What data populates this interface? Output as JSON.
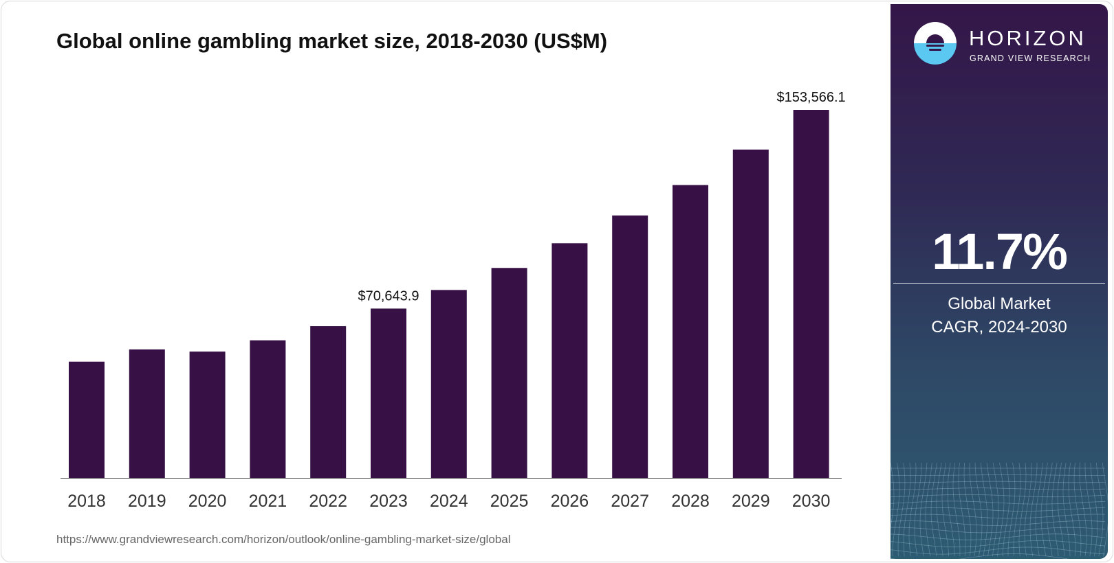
{
  "title": "Global online gambling market size, 2018-2030 (US$M)",
  "source": "https://www.grandviewresearch.com/horizon/outlook/online-gambling-market-size/global",
  "colors": {
    "bar": "#371145",
    "panel_top": "#341649",
    "panel_bottom": "#2d5b72",
    "logo_blue": "#5ac8f0"
  },
  "panel": {
    "brand": "HORIZON",
    "brand_sub": "GRAND VIEW RESEARCH",
    "cagr": "11.7%",
    "cagr_label_line1": "Global Market",
    "cagr_label_line2": "CAGR, 2024-2030"
  },
  "chart_data": {
    "type": "bar",
    "title": "Global online gambling market size, 2018-2030 (US$M)",
    "categories": [
      "2018",
      "2019",
      "2020",
      "2021",
      "2022",
      "2023",
      "2024",
      "2025",
      "2026",
      "2027",
      "2028",
      "2029",
      "2030"
    ],
    "values": [
      48500,
      53600,
      52700,
      57400,
      63300,
      70643.9,
      78400,
      87600,
      97900,
      109500,
      122200,
      137000,
      153566.1
    ],
    "data_labels": {
      "5": "$70,643.9",
      "12": "$153,566.1"
    },
    "ylim": [
      0,
      153566.1
    ],
    "grid": false,
    "xlabel": "",
    "ylabel": ""
  }
}
